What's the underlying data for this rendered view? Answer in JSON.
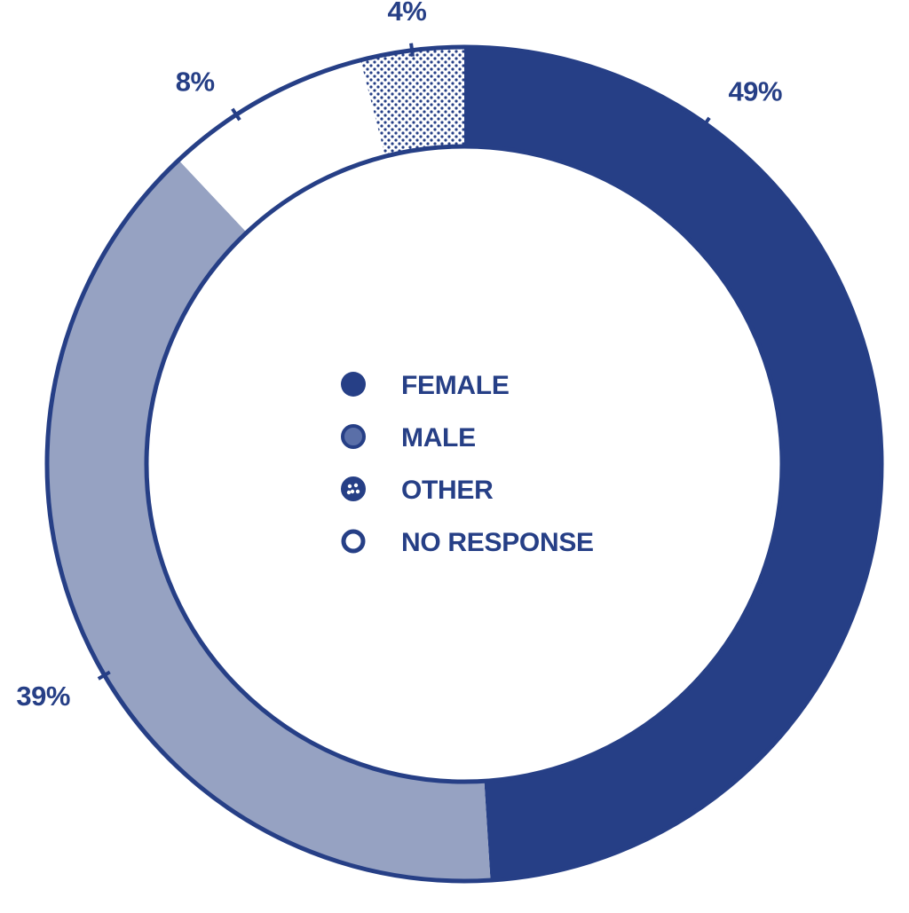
{
  "chart_data": {
    "type": "pie",
    "style": "donut",
    "categories": [
      "FEMALE",
      "MALE",
      "OTHER",
      "NO RESPONSE"
    ],
    "values": [
      49,
      39,
      4,
      8
    ],
    "value_labels": [
      "49%",
      "39%",
      "4%",
      "8%"
    ],
    "legend_placement": "center",
    "grid": false
  },
  "colors": {
    "outline": "#263f86",
    "female": "#263f86",
    "male": "#96a2c2",
    "other_dots": "#263f86",
    "no_response": "#ffffff",
    "background": "#ffffff"
  },
  "slice_order": [
    "FEMALE",
    "MALE",
    "NO RESPONSE",
    "OTHER"
  ],
  "legend": [
    {
      "label": "FEMALE",
      "swatch": "solid-dark"
    },
    {
      "label": "MALE",
      "swatch": "solid-light"
    },
    {
      "label": "OTHER",
      "swatch": "dotted"
    },
    {
      "label": "NO RESPONSE",
      "swatch": "hollow"
    }
  ]
}
